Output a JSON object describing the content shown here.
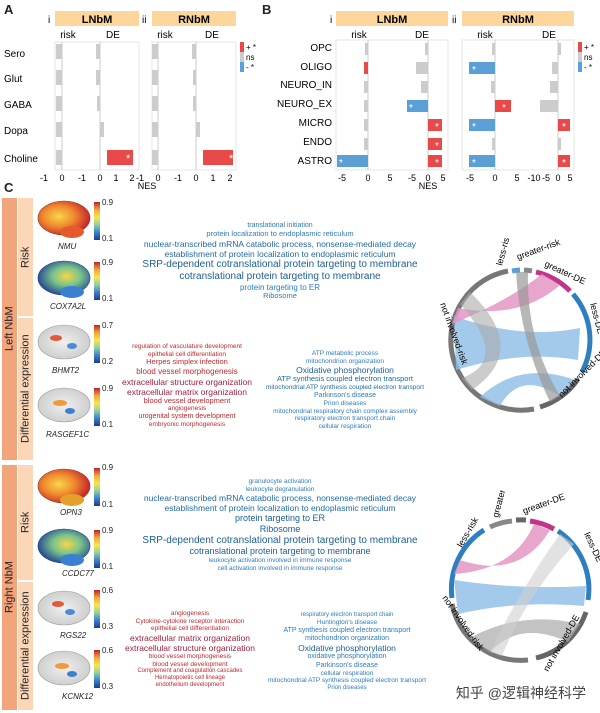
{
  "panel_letters": {
    "a": "A",
    "b": "B",
    "c": "C"
  },
  "panel_a": {
    "tracts": [
      {
        "index": "i",
        "name": "LNbM"
      },
      {
        "index": "ii",
        "name": "RNbM"
      }
    ],
    "column_headers": [
      "risk",
      "DE"
    ],
    "rows": [
      "Sero",
      "Glut",
      "GABA",
      "Dopa",
      "Choline"
    ],
    "x_ticks": [
      "-1",
      "0",
      "1",
      "2"
    ],
    "xlabel": "NES"
  },
  "panel_b": {
    "tracts": [
      {
        "index": "i",
        "name": "LNbM"
      },
      {
        "index": "ii",
        "name": "RNbM"
      }
    ],
    "column_headers": [
      "risk",
      "DE"
    ],
    "rows": [
      "OPC",
      "OLIGO",
      "NEURO_IN",
      "NEURO_EX",
      "MICRO",
      "ENDO",
      "ASTRO"
    ],
    "x_ticks_risk": [
      "-5",
      "0",
      "5"
    ],
    "x_ticks_de_l": [
      "-5",
      "0",
      "5"
    ],
    "x_ticks_risk_r": [
      "-5",
      "0",
      "5"
    ],
    "x_ticks_de_r": [
      "-10",
      "-5",
      "0",
      "5"
    ],
    "xlabel": "NES"
  },
  "legend": {
    "pos": "+ *",
    "ns": "ns",
    "neg": "- *"
  },
  "colors": {
    "pos": "#e84a4a",
    "neg": "#5aa0d6",
    "ns": "#cccccc",
    "header": "#fcd69a",
    "side": "#f2a47a",
    "subside": "#fbd7b8"
  },
  "panel_c": {
    "groups": [
      {
        "name": "Left NbM",
        "sub": [
          "Risk",
          "Differential expression"
        ],
        "genes": [
          "NMU",
          "COX7A2L",
          "BHMT2",
          "RASGEF1C"
        ],
        "scales": [
          [
            "0.9",
            "0.1"
          ],
          [
            "0.9",
            "0.1"
          ],
          [
            "0.7",
            "0.2"
          ],
          [
            "0.9",
            "0.1"
          ]
        ],
        "risk_terms": [
          "translational initiation",
          "protein localization to endoplasmic reticulum",
          "nuclear-transcribed mRNA catabolic process, nonsense-mediated decay",
          "establishment of protein localization to endoplasmic reticulum",
          "SRP-dependent cotranslational protein targeting to membrane",
          "cotranslational protein targeting to membrane",
          "protein targeting to ER",
          "Ribosome"
        ],
        "de_up_terms": [
          "regulation of vasculature development",
          "epithelial cell differentiation",
          "Herpes simplex infection",
          "blood vessel morphogenesis",
          "extracellular structure organization",
          "extracellular matrix organization",
          "blood vessel development",
          "angiogenesis",
          "urogenital system development",
          "embryonic morphogenesis"
        ],
        "de_down_terms": [
          "ATP metabolic process",
          "mitochondrion organization",
          "Oxidative phosphorylation",
          "ATP synthesis coupled electron transport",
          "mitochondrial ATP synthesis coupled electron transport",
          "Parkinson's disease",
          "Prion diseases",
          "mitochondrial respiratory chain complex assembly",
          "respiratory electron transport chain",
          "cellular respiration"
        ],
        "chord_labels": [
          "less-risk",
          "greater-risk",
          "greater-DE",
          "less-DE",
          "not involved-DE",
          "not involved-risk"
        ]
      },
      {
        "name": "Right NbM",
        "sub": [
          "Risk",
          "Differential expression"
        ],
        "genes": [
          "OPN3",
          "CCDC77",
          "RGS22",
          "KCNK12"
        ],
        "scales": [
          [
            "0.9",
            "0.1"
          ],
          [
            "0.9",
            "0.1"
          ],
          [
            "0.6",
            "0.3"
          ],
          [
            "0.6",
            "0.3"
          ]
        ],
        "risk_terms": [
          "granulocyte activation",
          "leukocyte degranulation",
          "nuclear-transcribed mRNA catabolic process, nonsense-mediated decay",
          "establishment of protein localization to endoplasmic reticulum",
          "protein targeting to ER",
          "Ribosome",
          "SRP-dependent cotranslational protein targeting to membrane",
          "cotranslational protein targeting to membrane",
          "leukocyte activation involved in immune response",
          "cell activation involved in immune response"
        ],
        "de_up_terms": [
          "angiogenesis",
          "Cytokine-cytokine receptor interaction",
          "epithelial cell differentiation",
          "extracellular matrix organization",
          "extracellular structure organization",
          "blood vessel morphogenesis",
          "blood vessel development",
          "Complement and coagulation cascades",
          "Hematopoietic cell lineage",
          "endothelium development"
        ],
        "de_down_terms": [
          "respiratory electron transport chain",
          "Huntington's disease",
          "ATP synthesis coupled electron transport",
          "mitochondrion organization",
          "Oxidative phosphorylation",
          "oxidative phosphorylation",
          "Parkinson's disease",
          "cellular respiration",
          "mitochondrial ATP synthesis coupled electron transport",
          "Prion diseases"
        ],
        "chord_labels": [
          "less-risk",
          "greater-risk",
          "greater-DE",
          "less-DE",
          "not involved-DE",
          "not involved-risk"
        ]
      }
    ]
  },
  "watermark": "知乎 @逻辑神经科学"
}
